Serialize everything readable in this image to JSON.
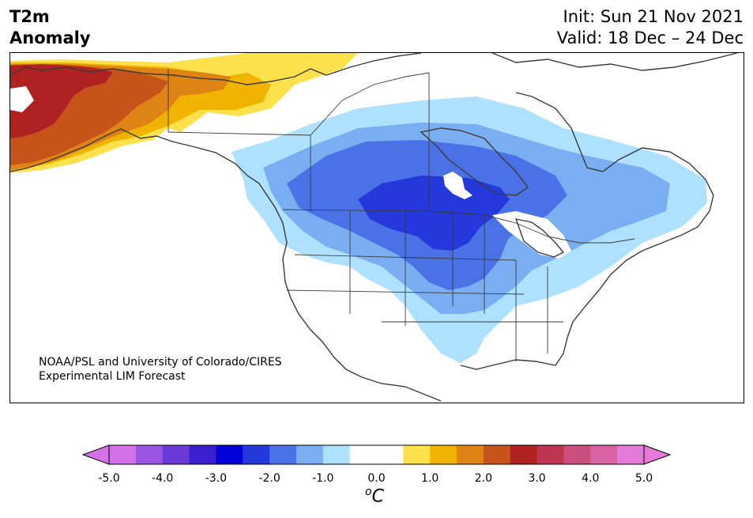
{
  "title": {
    "line1": "T2m",
    "line2": "Anomaly"
  },
  "meta": {
    "init": "Init: Sun 21 Nov 2021",
    "valid": "Valid: 18 Dec – 24 Dec"
  },
  "credit": {
    "line1": "NOAA/PSL and University of Colorado/CIRES",
    "line2": "Experimental LIM Forecast"
  },
  "colorbar": {
    "unit": "C",
    "unit_prefix": "o",
    "tick_labels": [
      "-5.0",
      "-4.0",
      "-3.0",
      "-2.0",
      "-1.0",
      "0.0",
      "1.0",
      "2.0",
      "3.0",
      "4.0",
      "5.0"
    ],
    "colors": [
      "#d470e8",
      "#9b55e3",
      "#6a3ad9",
      "#3a1ecf",
      "#0000d8",
      "#2538dc",
      "#4a72e6",
      "#79aef2",
      "#aee0ff",
      "#ffffff",
      "#ffffff",
      "#fde14c",
      "#f0b400",
      "#df8414",
      "#c6541a",
      "#b02222",
      "#bd3550",
      "#cb4f7c",
      "#d963a4",
      "#e57bd8"
    ],
    "under_color": "#d470e8",
    "over_color": "#e57bd8"
  },
  "legend_colors": {
    "warm_strong": "#b02222",
    "warm_mid": "#c6541a",
    "warm_light": "#df8414",
    "yellow_dark": "#f0b400",
    "yellow": "#fde14c",
    "cold_strong": "#2538dc",
    "cold_mid": "#4a72e6",
    "cold_light": "#79aef2",
    "cold_faint": "#aee0ff"
  }
}
